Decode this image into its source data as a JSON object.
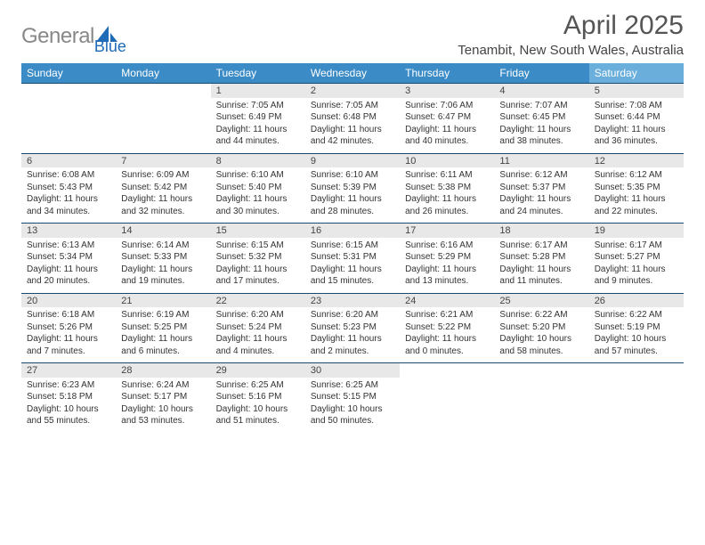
{
  "brand": {
    "part1": "General",
    "part2": "Blue"
  },
  "title": "April 2025",
  "subtitle": "Tenambit, New South Wales, Australia",
  "colors": {
    "header_blue": "#3b8bc6",
    "light_blue": "#6aaedb",
    "date_band": "#e8e8e8",
    "divider": "#1a4a6e"
  },
  "dows": [
    "Sunday",
    "Monday",
    "Tuesday",
    "Wednesday",
    "Thursday",
    "Friday",
    "Saturday"
  ],
  "weeks": [
    [
      null,
      null,
      {
        "d": "1",
        "sr": "Sunrise: 7:05 AM",
        "ss": "Sunset: 6:49 PM",
        "dl1": "Daylight: 11 hours",
        "dl2": "and 44 minutes."
      },
      {
        "d": "2",
        "sr": "Sunrise: 7:05 AM",
        "ss": "Sunset: 6:48 PM",
        "dl1": "Daylight: 11 hours",
        "dl2": "and 42 minutes."
      },
      {
        "d": "3",
        "sr": "Sunrise: 7:06 AM",
        "ss": "Sunset: 6:47 PM",
        "dl1": "Daylight: 11 hours",
        "dl2": "and 40 minutes."
      },
      {
        "d": "4",
        "sr": "Sunrise: 7:07 AM",
        "ss": "Sunset: 6:45 PM",
        "dl1": "Daylight: 11 hours",
        "dl2": "and 38 minutes."
      },
      {
        "d": "5",
        "sr": "Sunrise: 7:08 AM",
        "ss": "Sunset: 6:44 PM",
        "dl1": "Daylight: 11 hours",
        "dl2": "and 36 minutes."
      }
    ],
    [
      {
        "d": "6",
        "sr": "Sunrise: 6:08 AM",
        "ss": "Sunset: 5:43 PM",
        "dl1": "Daylight: 11 hours",
        "dl2": "and 34 minutes."
      },
      {
        "d": "7",
        "sr": "Sunrise: 6:09 AM",
        "ss": "Sunset: 5:42 PM",
        "dl1": "Daylight: 11 hours",
        "dl2": "and 32 minutes."
      },
      {
        "d": "8",
        "sr": "Sunrise: 6:10 AM",
        "ss": "Sunset: 5:40 PM",
        "dl1": "Daylight: 11 hours",
        "dl2": "and 30 minutes."
      },
      {
        "d": "9",
        "sr": "Sunrise: 6:10 AM",
        "ss": "Sunset: 5:39 PM",
        "dl1": "Daylight: 11 hours",
        "dl2": "and 28 minutes."
      },
      {
        "d": "10",
        "sr": "Sunrise: 6:11 AM",
        "ss": "Sunset: 5:38 PM",
        "dl1": "Daylight: 11 hours",
        "dl2": "and 26 minutes."
      },
      {
        "d": "11",
        "sr": "Sunrise: 6:12 AM",
        "ss": "Sunset: 5:37 PM",
        "dl1": "Daylight: 11 hours",
        "dl2": "and 24 minutes."
      },
      {
        "d": "12",
        "sr": "Sunrise: 6:12 AM",
        "ss": "Sunset: 5:35 PM",
        "dl1": "Daylight: 11 hours",
        "dl2": "and 22 minutes."
      }
    ],
    [
      {
        "d": "13",
        "sr": "Sunrise: 6:13 AM",
        "ss": "Sunset: 5:34 PM",
        "dl1": "Daylight: 11 hours",
        "dl2": "and 20 minutes."
      },
      {
        "d": "14",
        "sr": "Sunrise: 6:14 AM",
        "ss": "Sunset: 5:33 PM",
        "dl1": "Daylight: 11 hours",
        "dl2": "and 19 minutes."
      },
      {
        "d": "15",
        "sr": "Sunrise: 6:15 AM",
        "ss": "Sunset: 5:32 PM",
        "dl1": "Daylight: 11 hours",
        "dl2": "and 17 minutes."
      },
      {
        "d": "16",
        "sr": "Sunrise: 6:15 AM",
        "ss": "Sunset: 5:31 PM",
        "dl1": "Daylight: 11 hours",
        "dl2": "and 15 minutes."
      },
      {
        "d": "17",
        "sr": "Sunrise: 6:16 AM",
        "ss": "Sunset: 5:29 PM",
        "dl1": "Daylight: 11 hours",
        "dl2": "and 13 minutes."
      },
      {
        "d": "18",
        "sr": "Sunrise: 6:17 AM",
        "ss": "Sunset: 5:28 PM",
        "dl1": "Daylight: 11 hours",
        "dl2": "and 11 minutes."
      },
      {
        "d": "19",
        "sr": "Sunrise: 6:17 AM",
        "ss": "Sunset: 5:27 PM",
        "dl1": "Daylight: 11 hours",
        "dl2": "and 9 minutes."
      }
    ],
    [
      {
        "d": "20",
        "sr": "Sunrise: 6:18 AM",
        "ss": "Sunset: 5:26 PM",
        "dl1": "Daylight: 11 hours",
        "dl2": "and 7 minutes."
      },
      {
        "d": "21",
        "sr": "Sunrise: 6:19 AM",
        "ss": "Sunset: 5:25 PM",
        "dl1": "Daylight: 11 hours",
        "dl2": "and 6 minutes."
      },
      {
        "d": "22",
        "sr": "Sunrise: 6:20 AM",
        "ss": "Sunset: 5:24 PM",
        "dl1": "Daylight: 11 hours",
        "dl2": "and 4 minutes."
      },
      {
        "d": "23",
        "sr": "Sunrise: 6:20 AM",
        "ss": "Sunset: 5:23 PM",
        "dl1": "Daylight: 11 hours",
        "dl2": "and 2 minutes."
      },
      {
        "d": "24",
        "sr": "Sunrise: 6:21 AM",
        "ss": "Sunset: 5:22 PM",
        "dl1": "Daylight: 11 hours",
        "dl2": "and 0 minutes."
      },
      {
        "d": "25",
        "sr": "Sunrise: 6:22 AM",
        "ss": "Sunset: 5:20 PM",
        "dl1": "Daylight: 10 hours",
        "dl2": "and 58 minutes."
      },
      {
        "d": "26",
        "sr": "Sunrise: 6:22 AM",
        "ss": "Sunset: 5:19 PM",
        "dl1": "Daylight: 10 hours",
        "dl2": "and 57 minutes."
      }
    ],
    [
      {
        "d": "27",
        "sr": "Sunrise: 6:23 AM",
        "ss": "Sunset: 5:18 PM",
        "dl1": "Daylight: 10 hours",
        "dl2": "and 55 minutes."
      },
      {
        "d": "28",
        "sr": "Sunrise: 6:24 AM",
        "ss": "Sunset: 5:17 PM",
        "dl1": "Daylight: 10 hours",
        "dl2": "and 53 minutes."
      },
      {
        "d": "29",
        "sr": "Sunrise: 6:25 AM",
        "ss": "Sunset: 5:16 PM",
        "dl1": "Daylight: 10 hours",
        "dl2": "and 51 minutes."
      },
      {
        "d": "30",
        "sr": "Sunrise: 6:25 AM",
        "ss": "Sunset: 5:15 PM",
        "dl1": "Daylight: 10 hours",
        "dl2": "and 50 minutes."
      },
      null,
      null,
      null
    ]
  ]
}
